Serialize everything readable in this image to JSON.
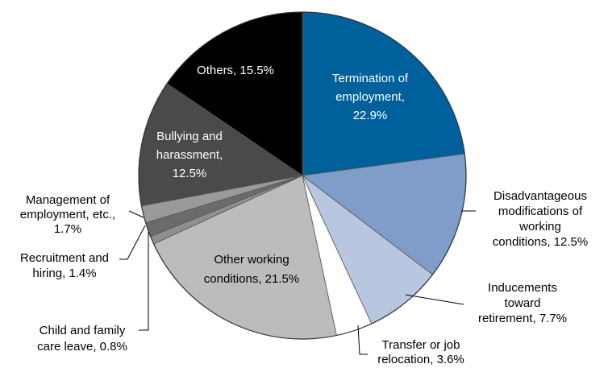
{
  "chart_data": {
    "type": "pie",
    "values": [
      22.9,
      12.5,
      7.7,
      3.6,
      21.5,
      0.8,
      1.4,
      1.7,
      12.5,
      15.5
    ],
    "value_labels": [
      "Termination of\nemployment,\n22.9%",
      "Disadvantageous\nmodifications of\nworking\nconditions, 12.5%",
      "Inducements\ntoward\nretirement, 7.7%",
      "Transfer or job\nrelocation, 3.6%",
      "Other working\nconditions, 21.5%",
      "Child and family\ncare leave, 0.8%",
      "Recruitment and\nhiring, 1.4%",
      "Management of\nemployment, etc.,\n1.7%",
      "Bullying and\nharassment,\n12.5%",
      "Others, 15.5%"
    ],
    "colors": [
      "#00609c",
      "#7f9dc8",
      "#b8c6e0",
      "#ffffff",
      "#bcbcbe",
      "#8f8f8f",
      "#6b6b6b",
      "#9a9a9a",
      "#4a4a4a",
      "#000000"
    ]
  }
}
